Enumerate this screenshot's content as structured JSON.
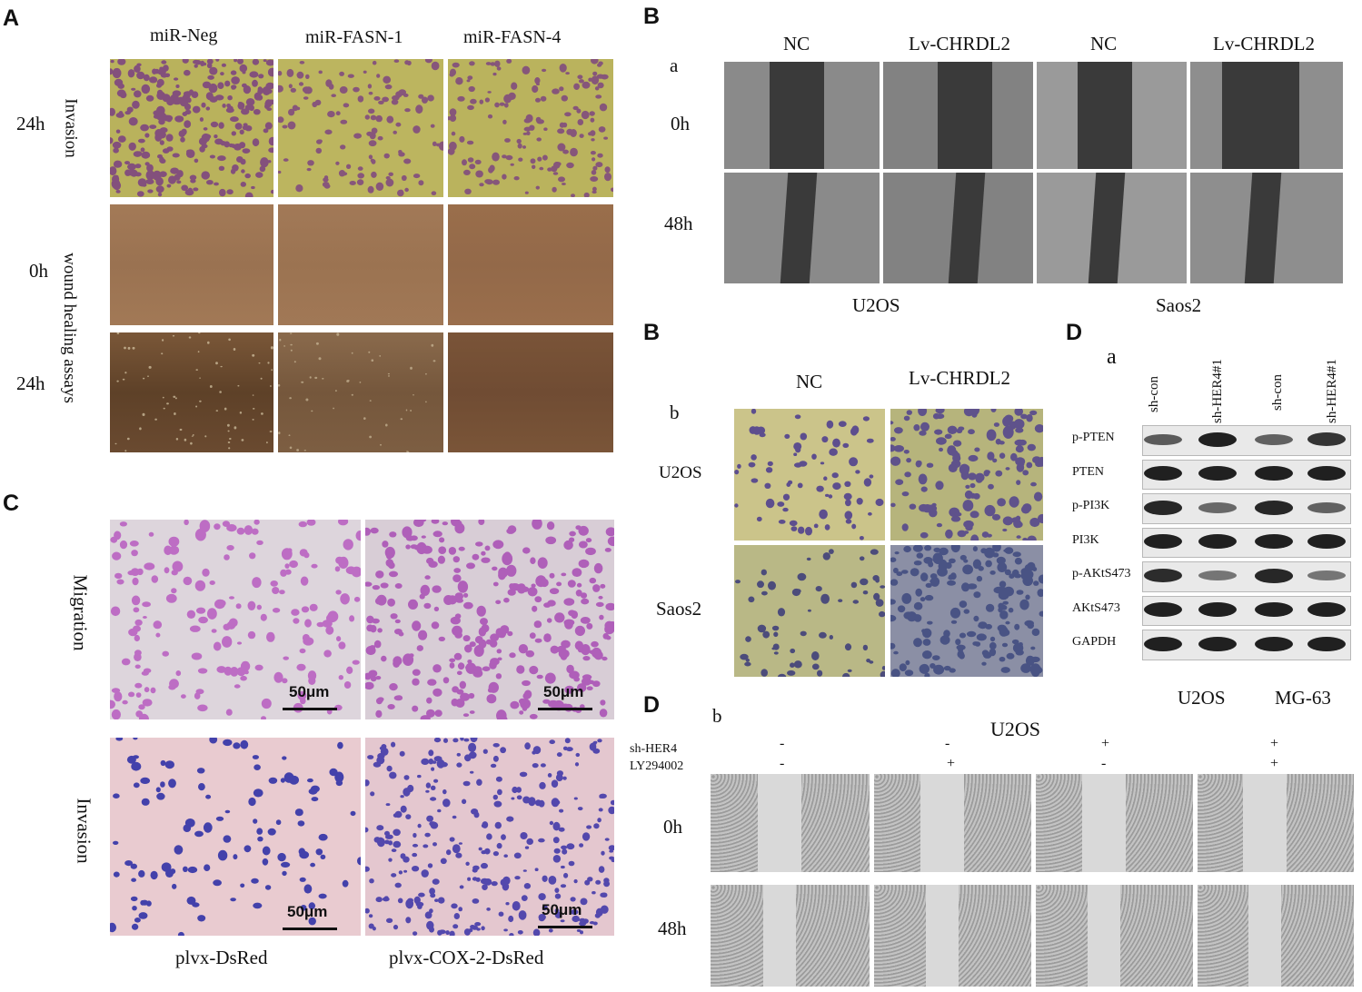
{
  "panel_A": {
    "label": "A",
    "columns": [
      "miR-Neg",
      "miR-FASN-1",
      "miR-FASN-4"
    ],
    "row_times": [
      "24h",
      "0h",
      "24h"
    ],
    "side_labels": [
      "Invasion",
      "wound healing assays"
    ]
  },
  "panel_B_a": {
    "label": "B",
    "sublabel": "a",
    "columns": [
      "NC",
      "Lv-CHRDL2",
      "NC",
      "Lv-CHRDL2"
    ],
    "row_times": [
      "0h",
      "48h"
    ],
    "cell_lines": [
      "U2OS",
      "Saos2"
    ]
  },
  "panel_B_b": {
    "label": "B",
    "sublabel": "b",
    "columns": [
      "NC",
      "Lv-CHRDL2"
    ],
    "rows": [
      "U2OS",
      "Saos2"
    ]
  },
  "panel_C": {
    "label": "C",
    "row_labels": [
      "Migration",
      "Invasion"
    ],
    "scale": "50μm",
    "columns": [
      "plvx-DsRed",
      "plvx-COX-2-DsRed"
    ]
  },
  "panel_D_a": {
    "label": "D",
    "sublabel": "a",
    "lanes": [
      "sh-con",
      "sh-HER4#1",
      "sh-con",
      "sh-HER4#1"
    ],
    "proteins": [
      "p-PTEN",
      "PTEN",
      "p-PI3K",
      "PI3K",
      "p-AKtS473",
      "AKtS473",
      "GAPDH"
    ],
    "cell_lines": [
      "U2OS",
      "MG-63"
    ],
    "band_intensity": [
      [
        0.55,
        1.0,
        0.5,
        0.85
      ],
      [
        1.0,
        1.0,
        1.0,
        1.0
      ],
      [
        0.95,
        0.45,
        0.95,
        0.5
      ],
      [
        1.0,
        1.0,
        1.0,
        1.0
      ],
      [
        0.9,
        0.35,
        0.95,
        0.35
      ],
      [
        1.0,
        1.0,
        1.0,
        1.0
      ],
      [
        1.0,
        1.0,
        1.0,
        1.0
      ]
    ]
  },
  "panel_D_b": {
    "label": "D",
    "sublabel": "b",
    "title": "U2OS",
    "row_names": [
      "sh-HER4",
      "LY294002"
    ],
    "sh_her4": [
      "-",
      "-",
      "+",
      "+"
    ],
    "ly294002": [
      "-",
      "+",
      "-",
      "+"
    ],
    "row_times": [
      "0h",
      "48h"
    ]
  }
}
